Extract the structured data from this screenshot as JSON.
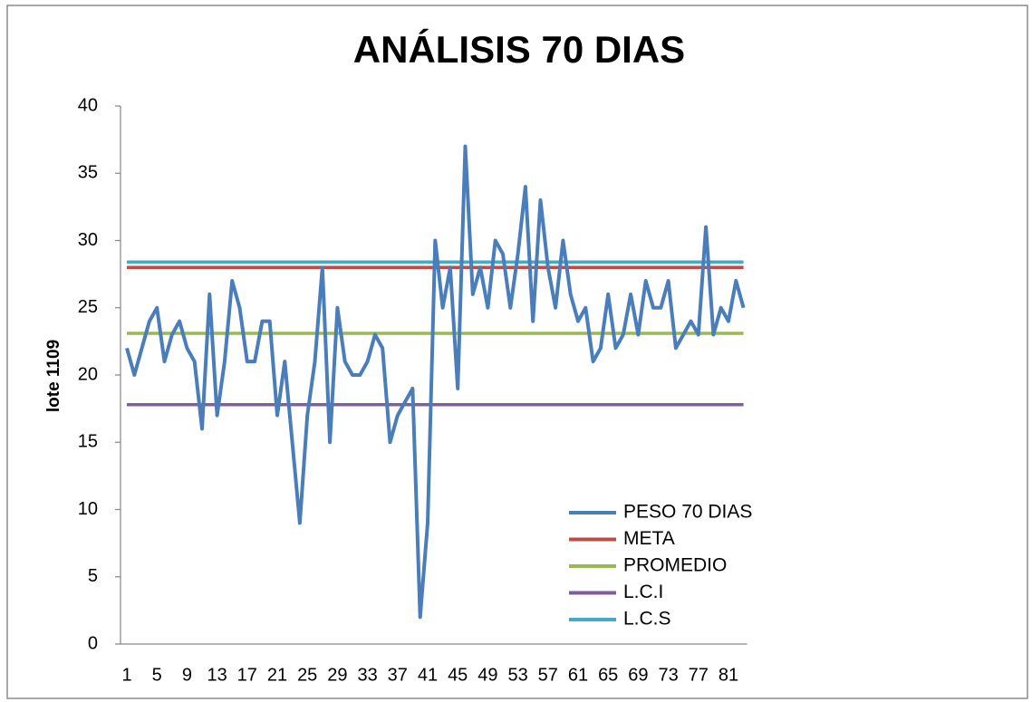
{
  "chart_data": {
    "type": "line",
    "title": "ANÁLISIS 70 DIAS",
    "y_label": "lote 1109",
    "categories": [
      1,
      null,
      null,
      null,
      5,
      null,
      null,
      null,
      9,
      null,
      null,
      null,
      13,
      null,
      null,
      null,
      17,
      null,
      null,
      null,
      21,
      null,
      null,
      null,
      25,
      null,
      null,
      null,
      29,
      null,
      null,
      null,
      33,
      null,
      null,
      null,
      37,
      null,
      null,
      null,
      41,
      null,
      null,
      null,
      45,
      null,
      null,
      null,
      49,
      null,
      null,
      null,
      53,
      null,
      null,
      null,
      57,
      null,
      null,
      null,
      61,
      null,
      null,
      null,
      65,
      null,
      null,
      null,
      69,
      null,
      null,
      null,
      73,
      null,
      null,
      null,
      77,
      null,
      null,
      null,
      81,
      null,
      null
    ],
    "series": [
      {
        "name": "PESO 70 DIAS",
        "color": "#4a7ebb",
        "values": [
          22,
          20,
          22,
          24,
          25,
          21,
          23,
          24,
          22,
          21,
          16,
          26,
          17,
          21,
          27,
          25,
          21,
          21,
          24,
          24,
          17,
          21,
          15,
          9,
          17,
          21,
          28,
          15,
          25,
          21,
          20,
          20,
          21,
          23,
          22,
          15,
          17,
          18,
          19,
          2,
          9,
          30,
          25,
          28,
          19,
          37,
          26,
          28,
          25,
          30,
          29,
          25,
          29,
          34,
          24,
          33,
          28,
          25,
          30,
          26,
          24,
          25,
          21,
          22,
          26,
          22,
          23,
          26,
          23,
          27,
          25,
          25,
          27,
          22,
          23,
          24,
          23,
          31,
          23,
          25,
          24,
          27,
          25
        ]
      },
      {
        "name": "META",
        "color": "#be4b48",
        "values": [
          28,
          28,
          28,
          28,
          28,
          28,
          28,
          28,
          28,
          28,
          28,
          28,
          28,
          28,
          28,
          28,
          28,
          28,
          28,
          28,
          28,
          28,
          28,
          28,
          28,
          28,
          28,
          28,
          28,
          28,
          28,
          28,
          28,
          28,
          28,
          28,
          28,
          28,
          28,
          28,
          28,
          28,
          28,
          28,
          28,
          28,
          28,
          28,
          28,
          28,
          28,
          28,
          28,
          28,
          28,
          28,
          28,
          28,
          28,
          28,
          28,
          28,
          28,
          28,
          28,
          28,
          28,
          28,
          28,
          28,
          28,
          28,
          28,
          28,
          28,
          28,
          28,
          28,
          28,
          28,
          28,
          28,
          28
        ]
      },
      {
        "name": "PROMEDIO",
        "color": "#98b954",
        "values": [
          23.1,
          23.1,
          23.1,
          23.1,
          23.1,
          23.1,
          23.1,
          23.1,
          23.1,
          23.1,
          23.1,
          23.1,
          23.1,
          23.1,
          23.1,
          23.1,
          23.1,
          23.1,
          23.1,
          23.1,
          23.1,
          23.1,
          23.1,
          23.1,
          23.1,
          23.1,
          23.1,
          23.1,
          23.1,
          23.1,
          23.1,
          23.1,
          23.1,
          23.1,
          23.1,
          23.1,
          23.1,
          23.1,
          23.1,
          23.1,
          23.1,
          23.1,
          23.1,
          23.1,
          23.1,
          23.1,
          23.1,
          23.1,
          23.1,
          23.1,
          23.1,
          23.1,
          23.1,
          23.1,
          23.1,
          23.1,
          23.1,
          23.1,
          23.1,
          23.1,
          23.1,
          23.1,
          23.1,
          23.1,
          23.1,
          23.1,
          23.1,
          23.1,
          23.1,
          23.1,
          23.1,
          23.1,
          23.1,
          23.1,
          23.1,
          23.1,
          23.1,
          23.1,
          23.1,
          23.1,
          23.1,
          23.1,
          23.1
        ]
      },
      {
        "name": "L.C.I",
        "color": "#7d5fa0",
        "values": [
          17.8,
          17.8,
          17.8,
          17.8,
          17.8,
          17.8,
          17.8,
          17.8,
          17.8,
          17.8,
          17.8,
          17.8,
          17.8,
          17.8,
          17.8,
          17.8,
          17.8,
          17.8,
          17.8,
          17.8,
          17.8,
          17.8,
          17.8,
          17.8,
          17.8,
          17.8,
          17.8,
          17.8,
          17.8,
          17.8,
          17.8,
          17.8,
          17.8,
          17.8,
          17.8,
          17.8,
          17.8,
          17.8,
          17.8,
          17.8,
          17.8,
          17.8,
          17.8,
          17.8,
          17.8,
          17.8,
          17.8,
          17.8,
          17.8,
          17.8,
          17.8,
          17.8,
          17.8,
          17.8,
          17.8,
          17.8,
          17.8,
          17.8,
          17.8,
          17.8,
          17.8,
          17.8,
          17.8,
          17.8,
          17.8,
          17.8,
          17.8,
          17.8,
          17.8,
          17.8,
          17.8,
          17.8,
          17.8,
          17.8,
          17.8,
          17.8,
          17.8,
          17.8,
          17.8,
          17.8,
          17.8,
          17.8,
          17.8
        ]
      },
      {
        "name": "L.C.S",
        "color": "#46aac5",
        "values": [
          28.4,
          28.4,
          28.4,
          28.4,
          28.4,
          28.4,
          28.4,
          28.4,
          28.4,
          28.4,
          28.4,
          28.4,
          28.4,
          28.4,
          28.4,
          28.4,
          28.4,
          28.4,
          28.4,
          28.4,
          28.4,
          28.4,
          28.4,
          28.4,
          28.4,
          28.4,
          28.4,
          28.4,
          28.4,
          28.4,
          28.4,
          28.4,
          28.4,
          28.4,
          28.4,
          28.4,
          28.4,
          28.4,
          28.4,
          28.4,
          28.4,
          28.4,
          28.4,
          28.4,
          28.4,
          28.4,
          28.4,
          28.4,
          28.4,
          28.4,
          28.4,
          28.4,
          28.4,
          28.4,
          28.4,
          28.4,
          28.4,
          28.4,
          28.4,
          28.4,
          28.4,
          28.4,
          28.4,
          28.4,
          28.4,
          28.4,
          28.4,
          28.4,
          28.4,
          28.4,
          28.4,
          28.4,
          28.4,
          28.4,
          28.4,
          28.4,
          28.4,
          28.4,
          28.4,
          28.4,
          28.4,
          28.4,
          28.4
        ]
      }
    ],
    "ylim": [
      0,
      40
    ],
    "yticks": [
      0,
      5,
      10,
      15,
      20,
      25,
      30,
      35,
      40
    ],
    "grid": false,
    "legend": "lower right"
  }
}
